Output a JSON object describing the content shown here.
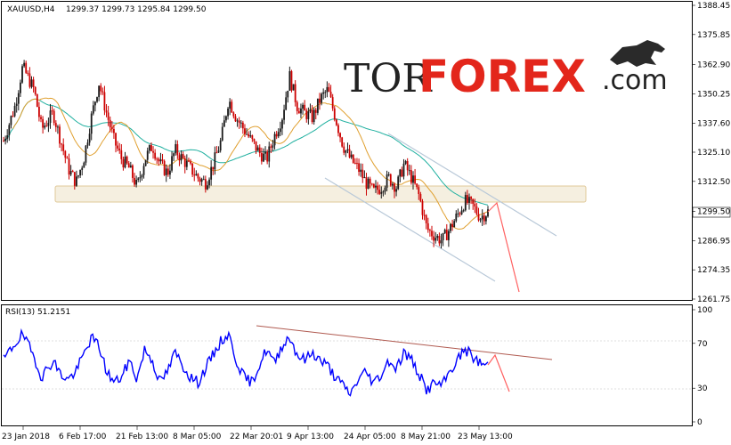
{
  "header": {
    "symbol": "XAUUSD,H4",
    "ohlc": "1299.37 1299.73 1295.84 1299.50"
  },
  "logo": {
    "part1": "TOR",
    "part2": "FOREX",
    "part3": ".com",
    "icon": "bull-icon"
  },
  "rsi": {
    "label": "RSI(13) 51.2151"
  },
  "colors": {
    "candle_up": "#1a1a1a",
    "candle_down": "#cc0000",
    "ma_fast": "#e0a030",
    "ma_slow": "#20b0a0",
    "rsi_line": "#0000ff",
    "channel": "#b8c8d8",
    "forecast_arrow": "#ff6060",
    "rsi_trend": "#b05a50",
    "zone_fill": "#f5efe0",
    "zone_border": "#e0c898"
  },
  "chart_data": [
    {
      "type": "candlestick",
      "title": "XAUUSD,H4",
      "y_ticks": [
        "1388.45",
        "1375.85",
        "1362.90",
        "1350.25",
        "1337.60",
        "1325.10",
        "1312.50",
        "1299.50",
        "1286.95",
        "1274.35",
        "1261.75"
      ],
      "ylim": [
        1261.75,
        1388.45
      ],
      "current_price": "1299.50",
      "x_ticks": [
        "23 Jan 2018",
        "6 Feb 17:00",
        "21 Feb 13:00",
        "8 Mar 05:00",
        "22 Mar 20:01",
        "9 Apr 13:00",
        "24 Apr 05:00",
        "8 May 21:00",
        "23 May 13:00"
      ],
      "approx_close_path": [
        [
          0,
          1330
        ],
        [
          3,
          1345
        ],
        [
          5,
          1362
        ],
        [
          8,
          1352
        ],
        [
          10,
          1335
        ],
        [
          13,
          1342
        ],
        [
          15,
          1330
        ],
        [
          17,
          1318
        ],
        [
          19,
          1312
        ],
        [
          21,
          1322
        ],
        [
          23,
          1340
        ],
        [
          25,
          1355
        ],
        [
          27,
          1342
        ],
        [
          29,
          1330
        ],
        [
          31,
          1322
        ],
        [
          33,
          1318
        ],
        [
          35,
          1310
        ],
        [
          37,
          1322
        ],
        [
          39,
          1328
        ],
        [
          41,
          1320
        ],
        [
          43,
          1316
        ],
        [
          45,
          1326
        ],
        [
          47,
          1322
        ],
        [
          49,
          1318
        ],
        [
          51,
          1314
        ],
        [
          53,
          1312
        ],
        [
          55,
          1320
        ],
        [
          57,
          1330
        ],
        [
          59,
          1348
        ],
        [
          61,
          1340
        ],
        [
          63,
          1335
        ],
        [
          65,
          1330
        ],
        [
          67,
          1325
        ],
        [
          69,
          1322
        ],
        [
          71,
          1332
        ],
        [
          73,
          1340
        ],
        [
          75,
          1358
        ],
        [
          77,
          1345
        ],
        [
          79,
          1342
        ],
        [
          81,
          1340
        ],
        [
          83,
          1348
        ],
        [
          85,
          1352
        ],
        [
          87,
          1340
        ],
        [
          89,
          1328
        ],
        [
          91,
          1322
        ],
        [
          93,
          1318
        ],
        [
          95,
          1312
        ],
        [
          97,
          1308
        ],
        [
          99,
          1310
        ],
        [
          101,
          1314
        ],
        [
          103,
          1310
        ],
        [
          105,
          1320
        ],
        [
          107,
          1314
        ],
        [
          109,
          1306
        ],
        [
          111,
          1292
        ],
        [
          113,
          1289
        ],
        [
          115,
          1287
        ],
        [
          117,
          1292
        ],
        [
          119,
          1298
        ],
        [
          121,
          1304
        ],
        [
          123,
          1302
        ],
        [
          125,
          1297
        ],
        [
          127,
          1299.5
        ]
      ],
      "support_zone": [
        1305,
        1311
      ],
      "forecast": "down"
    },
    {
      "type": "line",
      "title": "RSI(13) 51.2151",
      "y_ticks": [
        "100",
        "70",
        "30",
        "0"
      ],
      "ylim": [
        0,
        100
      ],
      "x_ticks": [
        "23 Jan 2018",
        "6 Feb 17:00",
        "21 Feb 13:00",
        "8 Mar 05:00",
        "22 Mar 20:01",
        "9 Apr 13:00",
        "24 Apr 05:00",
        "8 May 21:00",
        "23 May 13:00"
      ],
      "approx_values": [
        [
          0,
          55
        ],
        [
          3,
          70
        ],
        [
          5,
          78
        ],
        [
          8,
          58
        ],
        [
          10,
          40
        ],
        [
          13,
          55
        ],
        [
          15,
          42
        ],
        [
          17,
          38
        ],
        [
          19,
          45
        ],
        [
          21,
          60
        ],
        [
          23,
          75
        ],
        [
          25,
          68
        ],
        [
          27,
          45
        ],
        [
          29,
          35
        ],
        [
          31,
          40
        ],
        [
          33,
          55
        ],
        [
          35,
          38
        ],
        [
          37,
          65
        ],
        [
          39,
          55
        ],
        [
          41,
          35
        ],
        [
          43,
          45
        ],
        [
          45,
          62
        ],
        [
          47,
          50
        ],
        [
          49,
          40
        ],
        [
          51,
          35
        ],
        [
          53,
          48
        ],
        [
          55,
          60
        ],
        [
          57,
          72
        ],
        [
          59,
          78
        ],
        [
          61,
          55
        ],
        [
          63,
          40
        ],
        [
          65,
          35
        ],
        [
          67,
          50
        ],
        [
          69,
          65
        ],
        [
          71,
          52
        ],
        [
          73,
          68
        ],
        [
          75,
          76
        ],
        [
          77,
          60
        ],
        [
          79,
          55
        ],
        [
          81,
          62
        ],
        [
          83,
          55
        ],
        [
          85,
          50
        ],
        [
          87,
          40
        ],
        [
          89,
          32
        ],
        [
          91,
          25
        ],
        [
          93,
          38
        ],
        [
          95,
          45
        ],
        [
          97,
          35
        ],
        [
          99,
          42
        ],
        [
          101,
          55
        ],
        [
          103,
          48
        ],
        [
          105,
          62
        ],
        [
          107,
          55
        ],
        [
          109,
          42
        ],
        [
          111,
          28
        ],
        [
          113,
          35
        ],
        [
          115,
          32
        ],
        [
          117,
          45
        ],
        [
          119,
          55
        ],
        [
          121,
          65
        ],
        [
          123,
          58
        ],
        [
          125,
          52
        ],
        [
          127,
          51.2
        ]
      ]
    }
  ]
}
